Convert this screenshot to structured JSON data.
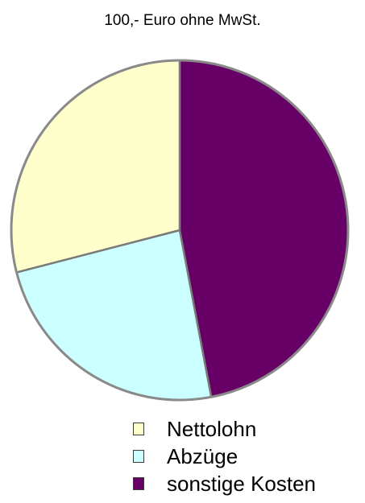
{
  "chart_data": {
    "type": "pie",
    "title": "100,- Euro ohne MwSt.",
    "slices": [
      {
        "label": "Nettolohn",
        "value": 29,
        "color": "#ffffcc"
      },
      {
        "label": "Abzüge",
        "value": 24,
        "color": "#ccffff"
      },
      {
        "label": "sonstige Kosten",
        "value": 47,
        "color": "#660066"
      }
    ],
    "legend": "bottom"
  }
}
